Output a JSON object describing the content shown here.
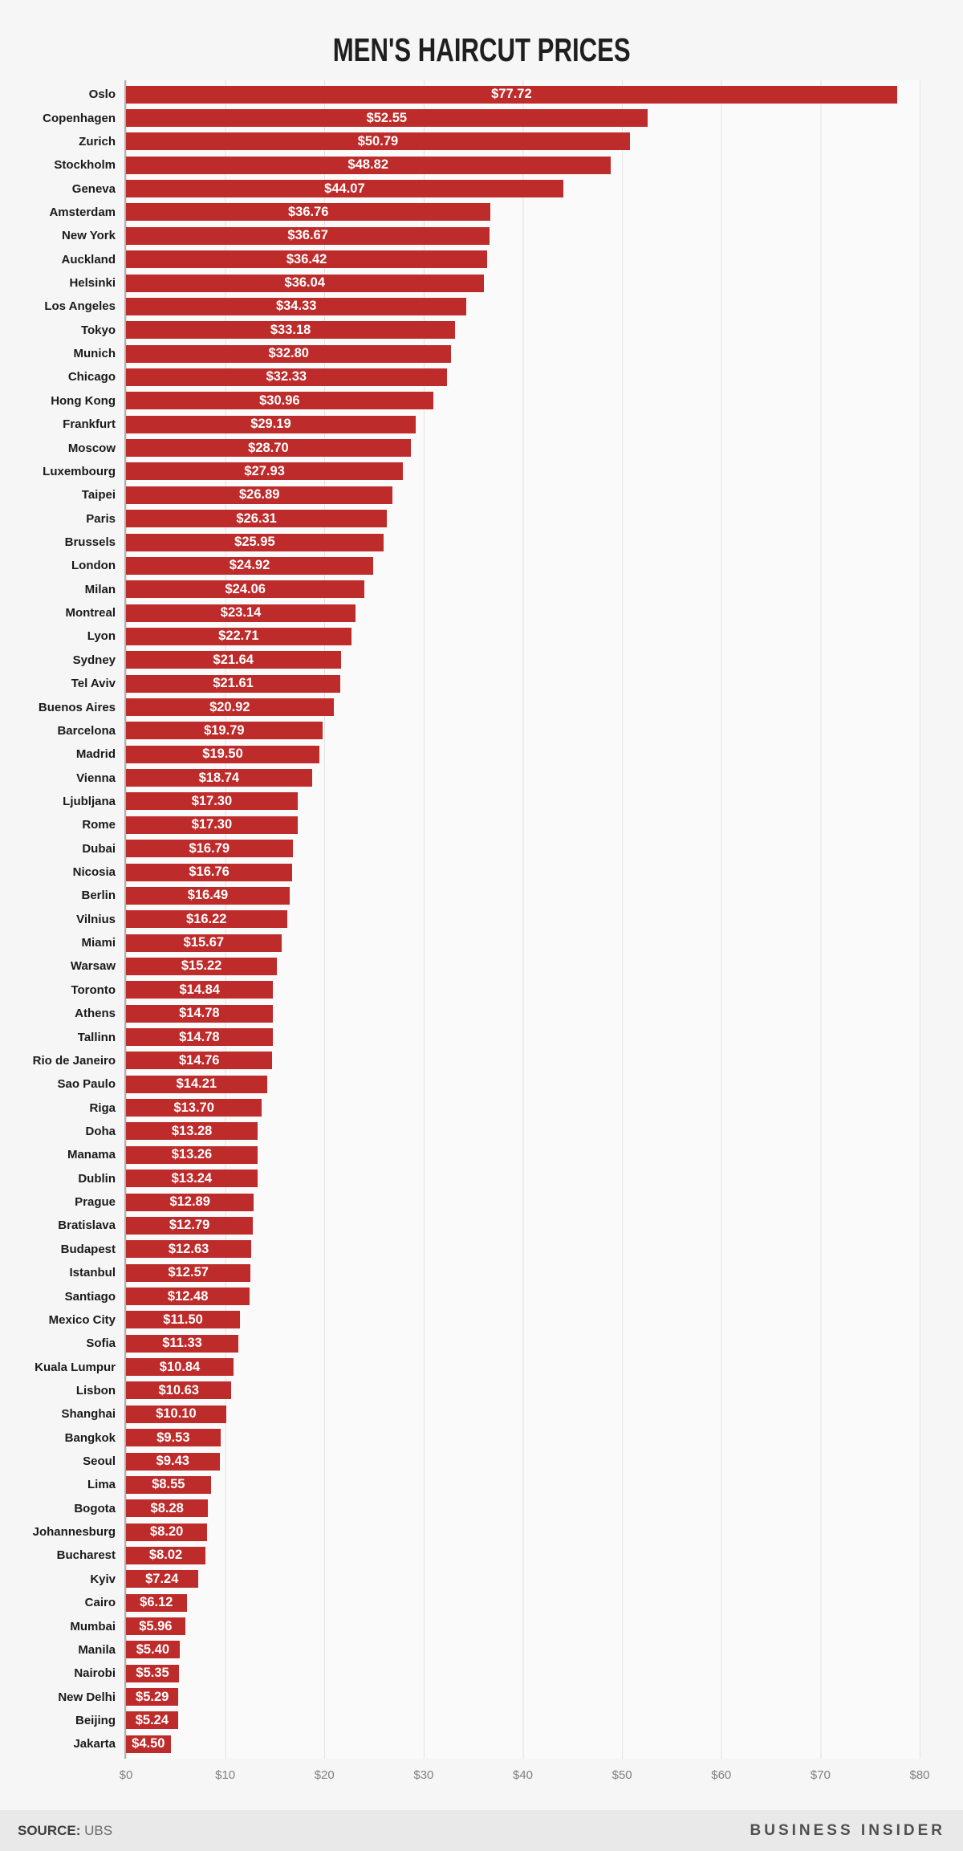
{
  "title": "MEN'S HAIRCUT PRICES",
  "chart_data": {
    "type": "bar",
    "orientation": "horizontal",
    "title": "MEN'S HAIRCUT PRICES",
    "categories": [
      "Oslo",
      "Copenhagen",
      "Zurich",
      "Stockholm",
      "Geneva",
      "Amsterdam",
      "New York",
      "Auckland",
      "Helsinki",
      "Los Angeles",
      "Tokyo",
      "Munich",
      "Chicago",
      "Hong Kong",
      "Frankfurt",
      "Moscow",
      "Luxembourg",
      "Taipei",
      "Paris",
      "Brussels",
      "London",
      "Milan",
      "Montreal",
      "Lyon",
      "Sydney",
      "Tel Aviv",
      "Buenos Aires",
      "Barcelona",
      "Madrid",
      "Vienna",
      "Ljubljana",
      "Rome",
      "Dubai",
      "Nicosia",
      "Berlin",
      "Vilnius",
      "Miami",
      "Warsaw",
      "Toronto",
      "Athens",
      "Tallinn",
      "Rio de Janeiro",
      "Sao Paulo",
      "Riga",
      "Doha",
      "Manama",
      "Dublin",
      "Prague",
      "Bratislava",
      "Budapest",
      "Istanbul",
      "Santiago",
      "Mexico City",
      "Sofia",
      "Kuala Lumpur",
      "Lisbon",
      "Shanghai",
      "Bangkok",
      "Seoul",
      "Lima",
      "Bogota",
      "Johannesburg",
      "Bucharest",
      "Kyiv",
      "Cairo",
      "Mumbai",
      "Manila",
      "Nairobi",
      "New Delhi",
      "Beijing",
      "Jakarta"
    ],
    "values": [
      77.72,
      52.55,
      50.79,
      48.82,
      44.07,
      36.76,
      36.67,
      36.42,
      36.04,
      34.33,
      33.18,
      32.8,
      32.33,
      30.96,
      29.19,
      28.7,
      27.93,
      26.89,
      26.31,
      25.95,
      24.92,
      24.06,
      23.14,
      22.71,
      21.64,
      21.61,
      20.92,
      19.79,
      19.5,
      18.74,
      17.3,
      17.3,
      16.79,
      16.76,
      16.49,
      16.22,
      15.67,
      15.22,
      14.84,
      14.78,
      14.78,
      14.76,
      14.21,
      13.7,
      13.28,
      13.26,
      13.24,
      12.89,
      12.79,
      12.63,
      12.57,
      12.48,
      11.5,
      11.33,
      10.84,
      10.63,
      10.1,
      9.53,
      9.43,
      8.55,
      8.28,
      8.2,
      8.02,
      7.24,
      6.12,
      5.96,
      5.4,
      5.35,
      5.29,
      5.24,
      4.5
    ],
    "value_prefix": "$",
    "xlim": [
      0,
      80
    ],
    "x_ticks": [
      "$0",
      "$10",
      "$20",
      "$30",
      "$40",
      "$50",
      "$60",
      "$70",
      "$80"
    ],
    "grid": true,
    "legend": "none",
    "bar_color": "#be2b2b",
    "value_label_color": "#ffffff"
  },
  "footer": {
    "source_label": "SOURCE:",
    "source_value": "UBS",
    "brand": "BUSINESS INSIDER"
  }
}
